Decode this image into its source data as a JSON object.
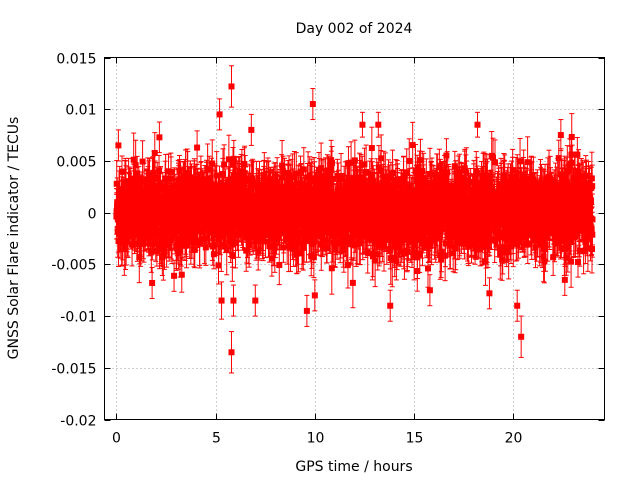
{
  "chart_data": {
    "type": "scatter",
    "title": "Day 002 of 2024",
    "xlabel": "GPS time / hours",
    "ylabel": "GNSS Solar Flare indicator / TECUs",
    "xlim": [
      -0.6,
      24.6
    ],
    "ylim": [
      -0.02,
      0.015
    ],
    "x_ticks": [
      0,
      5,
      10,
      15,
      20
    ],
    "x_tick_labels": [
      "0",
      "5",
      "10",
      "15",
      "20"
    ],
    "y_ticks": [
      0.015,
      0.01,
      0.005,
      0,
      -0.005,
      -0.01,
      -0.015,
      -0.02
    ],
    "y_tick_labels": [
      "0.015",
      "0.01",
      "0.005",
      "0",
      "-0.005",
      "-0.01",
      "-0.015",
      "-0.02"
    ],
    "grid": true,
    "series_color": "#ff0000",
    "series": [
      {
        "name": "GNSS Solar Flare indicator",
        "marker": "square",
        "error_bars": true,
        "time_range_hours": [
          0,
          24
        ],
        "sample_interval_hours": 0.0083,
        "typical_spread": 0.003,
        "typical_error": 0.002,
        "notable_points": [
          {
            "x": 0.1,
            "y": 0.0065,
            "err": 0.0015
          },
          {
            "x": 1.8,
            "y": -0.0068,
            "err": 0.0015
          },
          {
            "x": 5.2,
            "y": 0.0095,
            "err": 0.0015
          },
          {
            "x": 5.3,
            "y": -0.0085,
            "err": 0.0018
          },
          {
            "x": 5.8,
            "y": 0.0122,
            "err": 0.002
          },
          {
            "x": 5.8,
            "y": -0.0135,
            "err": 0.002
          },
          {
            "x": 5.9,
            "y": -0.0085,
            "err": 0.0015
          },
          {
            "x": 6.8,
            "y": 0.008,
            "err": 0.0015
          },
          {
            "x": 7.0,
            "y": -0.0085,
            "err": 0.0015
          },
          {
            "x": 9.6,
            "y": -0.0095,
            "err": 0.0015
          },
          {
            "x": 9.9,
            "y": 0.0105,
            "err": 0.0015
          },
          {
            "x": 10.0,
            "y": -0.008,
            "err": 0.0015
          },
          {
            "x": 12.4,
            "y": 0.0085,
            "err": 0.0012
          },
          {
            "x": 13.2,
            "y": 0.0085,
            "err": 0.0012
          },
          {
            "x": 13.8,
            "y": -0.009,
            "err": 0.0015
          },
          {
            "x": 15.8,
            "y": -0.0075,
            "err": 0.0015
          },
          {
            "x": 18.2,
            "y": 0.0085,
            "err": 0.0012
          },
          {
            "x": 18.8,
            "y": -0.0078,
            "err": 0.0015
          },
          {
            "x": 20.2,
            "y": -0.009,
            "err": 0.0015
          },
          {
            "x": 20.4,
            "y": -0.012,
            "err": 0.002
          },
          {
            "x": 22.4,
            "y": 0.0075,
            "err": 0.0015
          },
          {
            "x": 22.6,
            "y": -0.0065,
            "err": 0.0015
          }
        ]
      }
    ]
  }
}
